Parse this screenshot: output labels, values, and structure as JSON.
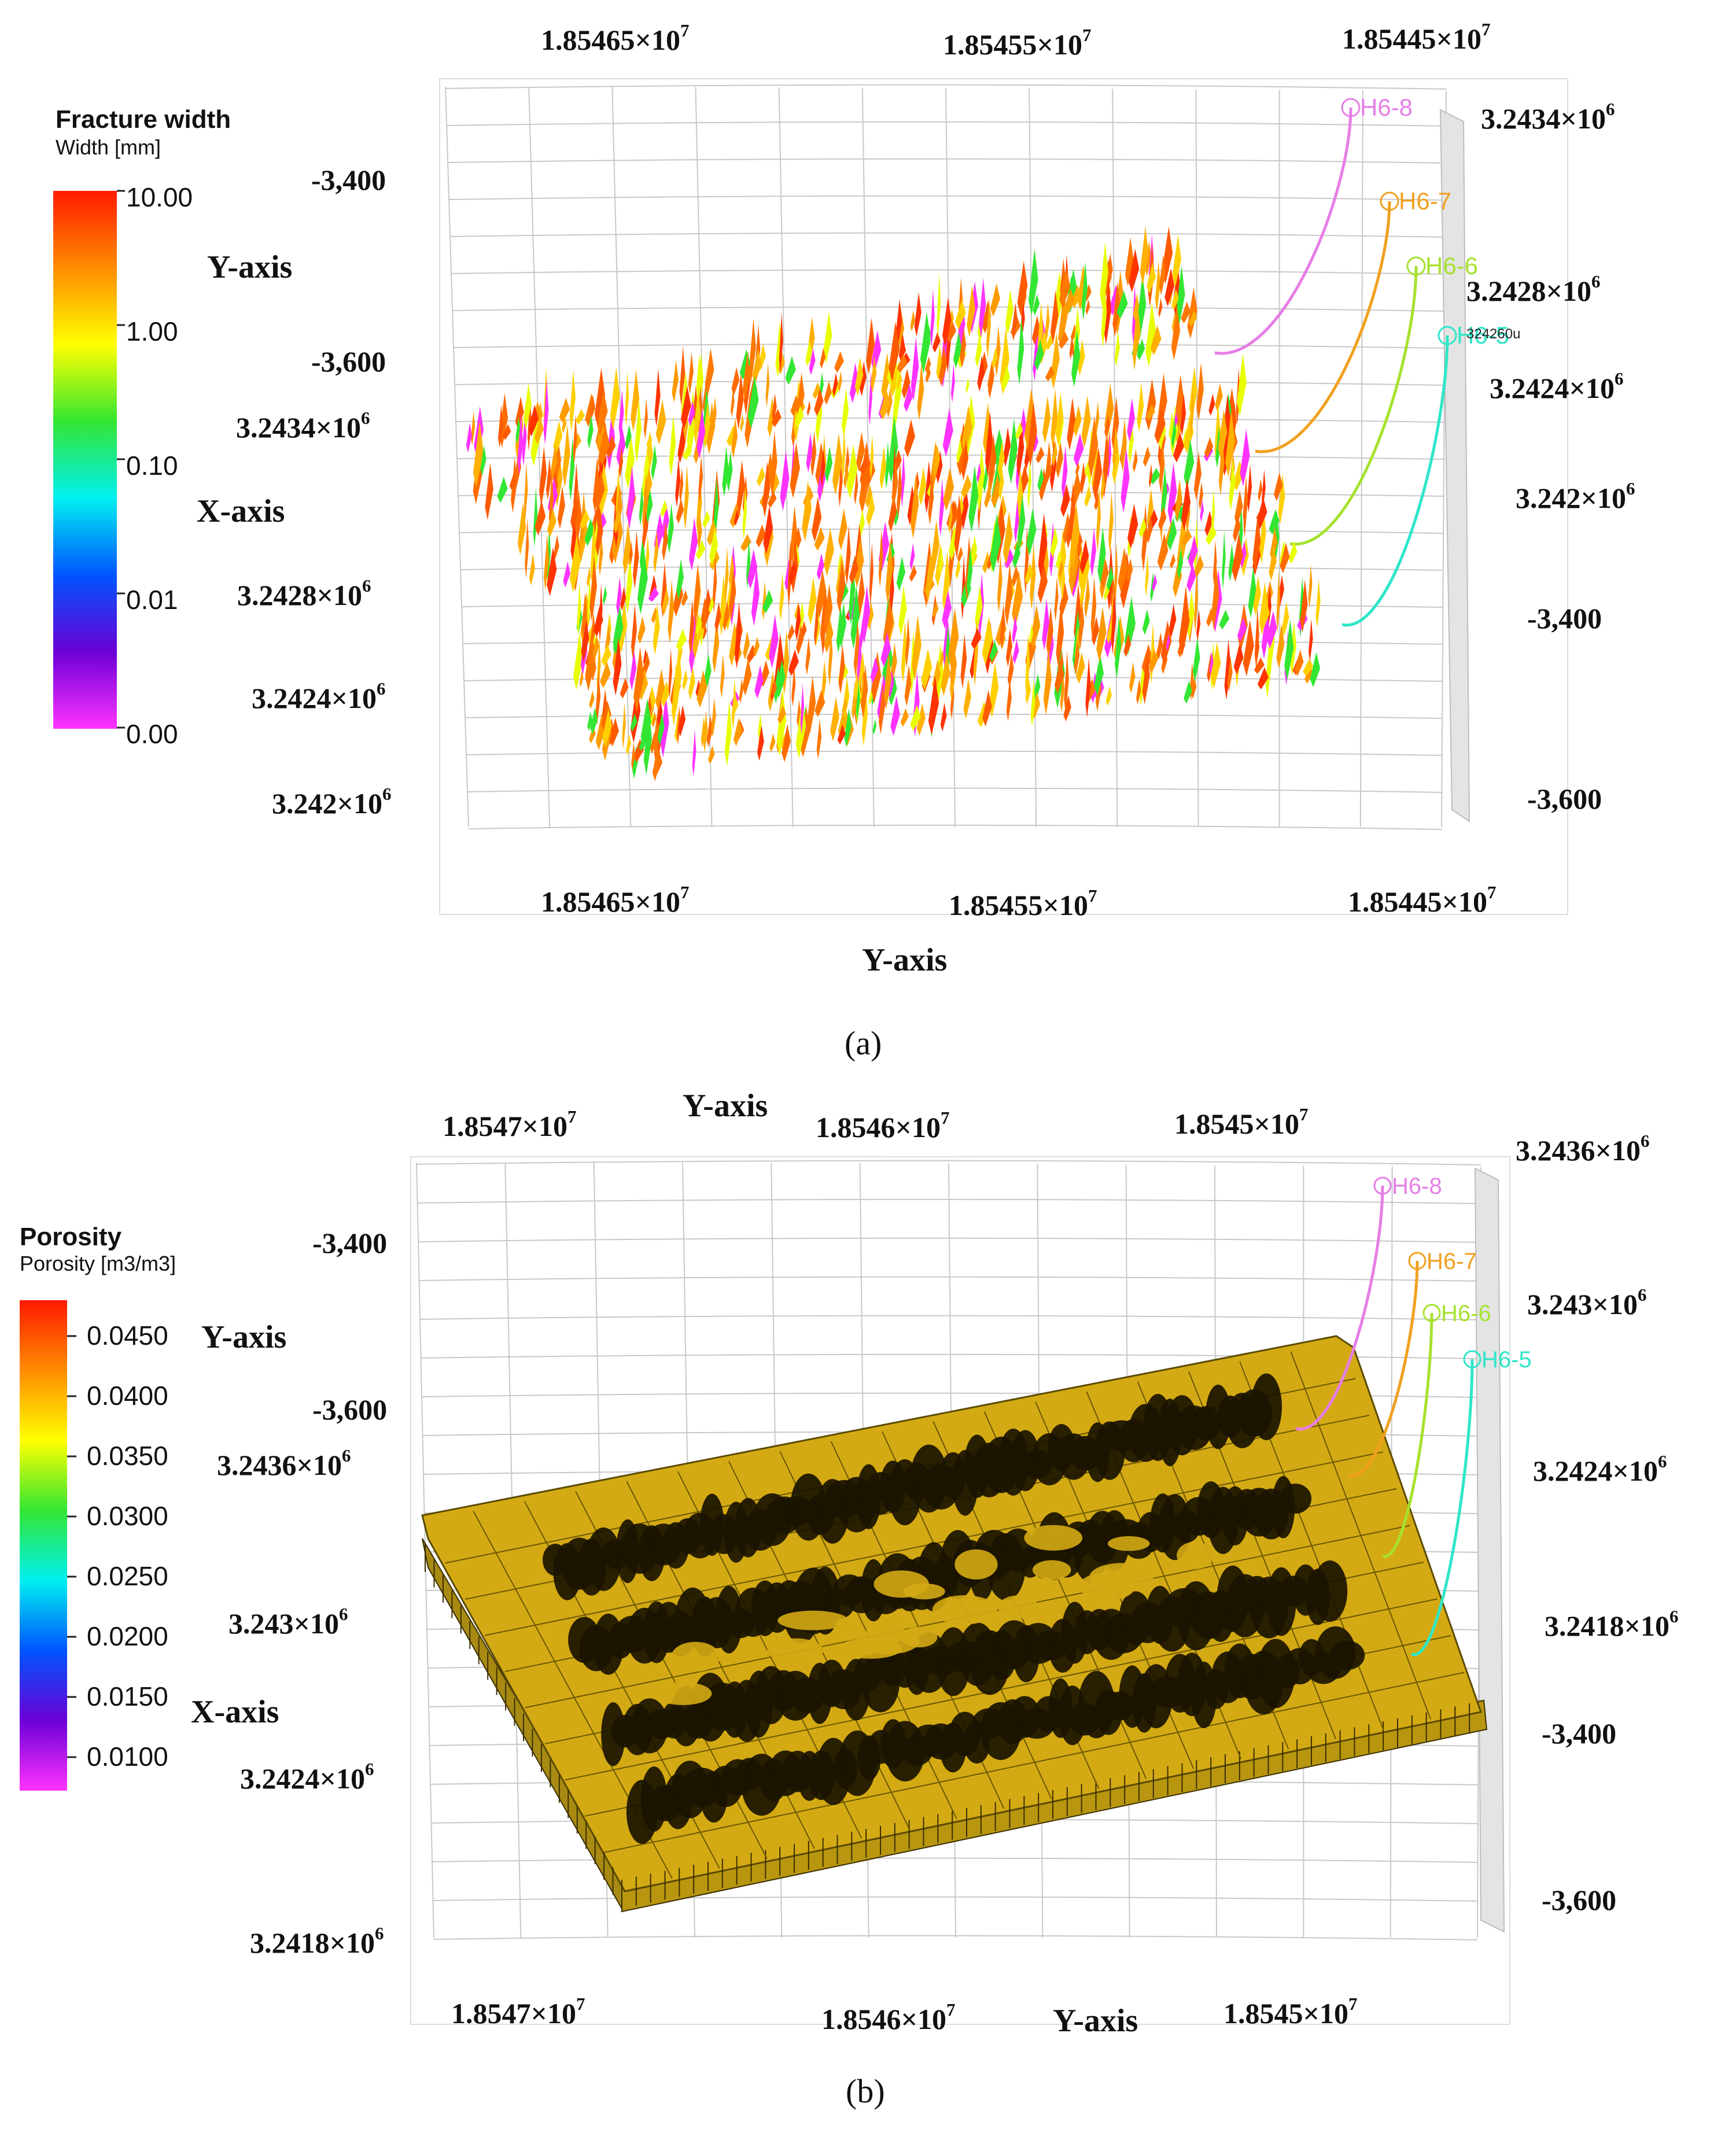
{
  "panel_a": {
    "caption": "(a)",
    "legend": {
      "title": "Fracture width",
      "subtitle": "Width [mm]",
      "ticks": [
        "10.00",
        "1.00",
        "0.10",
        "0.01",
        "0.00"
      ],
      "colors": [
        "#ff1a00",
        "#ff8c00",
        "#ffff00",
        "#33e633",
        "#00f0f0",
        "#0055ff",
        "#6b00d6",
        "#ff33ff"
      ]
    },
    "axis_labels": {
      "top": [
        "1.85465×10",
        "1.85455×10",
        "1.85445×10"
      ],
      "top_exp": "7",
      "bottom": [
        "1.85465×10",
        "1.85455×10",
        "1.85445×10"
      ],
      "bottom_exp": "7",
      "bottom_title": "Y-axis",
      "left_depth": [
        "-3,400",
        "-3,600"
      ],
      "left_title_y": "Y-axis",
      "left_title_x": "X-axis",
      "left_x": [
        "3.2434×10",
        "3.2428×10",
        "3.2424×10",
        "3.242×10"
      ],
      "left_x_exp": "6",
      "right_x": [
        "3.2434×10",
        "3.2428×10",
        "3.2424×10",
        "3.242×10"
      ],
      "right_x_exp": "6",
      "right_depth": [
        "-3,400",
        "-3,600"
      ]
    },
    "wells": [
      {
        "name": "H6-8",
        "color": "#e67ee6"
      },
      {
        "name": "H6-7",
        "color": "#f0a020"
      },
      {
        "name": "H6-6",
        "color": "#a6e22e"
      },
      {
        "name": "H6-5",
        "color": "#2ee6c8"
      }
    ],
    "overlap_text": "324260u"
  },
  "panel_b": {
    "caption": "(b)",
    "legend": {
      "title": "Porosity",
      "subtitle": "Porosity [m3/m3]",
      "ticks": [
        "0.0450",
        "0.0400",
        "0.0350",
        "0.0300",
        "0.0250",
        "0.0200",
        "0.0150",
        "0.0100"
      ],
      "colors": [
        "#ff1a00",
        "#ff8c00",
        "#ffff00",
        "#33e633",
        "#00f0f0",
        "#0055ff",
        "#6b00d6",
        "#ff33ff"
      ]
    },
    "axis_labels": {
      "top_title": "Y-axis",
      "top": [
        "1.8547×10",
        "1.8546×10",
        "1.8545×10"
      ],
      "top_exp": "7",
      "bottom": [
        "1.8547×10",
        "1.8546×10",
        "1.8545×10"
      ],
      "bottom_exp": "7",
      "bottom_title": "Y-axis",
      "left_depth": [
        "-3,400",
        "-3,600"
      ],
      "left_title_y": "Y-axis",
      "left_title_x": "X-axis",
      "left_x": [
        "3.2436×10",
        "3.243×10",
        "3.2424×10",
        "3.2418×10"
      ],
      "left_x_exp": "6",
      "right_x": [
        "3.2436×10",
        "3.243×10",
        "3.2424×10",
        "3.2418×10"
      ],
      "right_x_exp": "6",
      "right_depth": [
        "-3,400",
        "-3,600"
      ]
    },
    "wells": [
      {
        "name": "H6-8",
        "color": "#e67ee6"
      },
      {
        "name": "H6-7",
        "color": "#f0a020"
      },
      {
        "name": "H6-6",
        "color": "#a6e22e"
      },
      {
        "name": "H6-5",
        "color": "#2ee6c8"
      }
    ],
    "block_color": "#d4aa14",
    "mesh_color": "#1a1400"
  }
}
